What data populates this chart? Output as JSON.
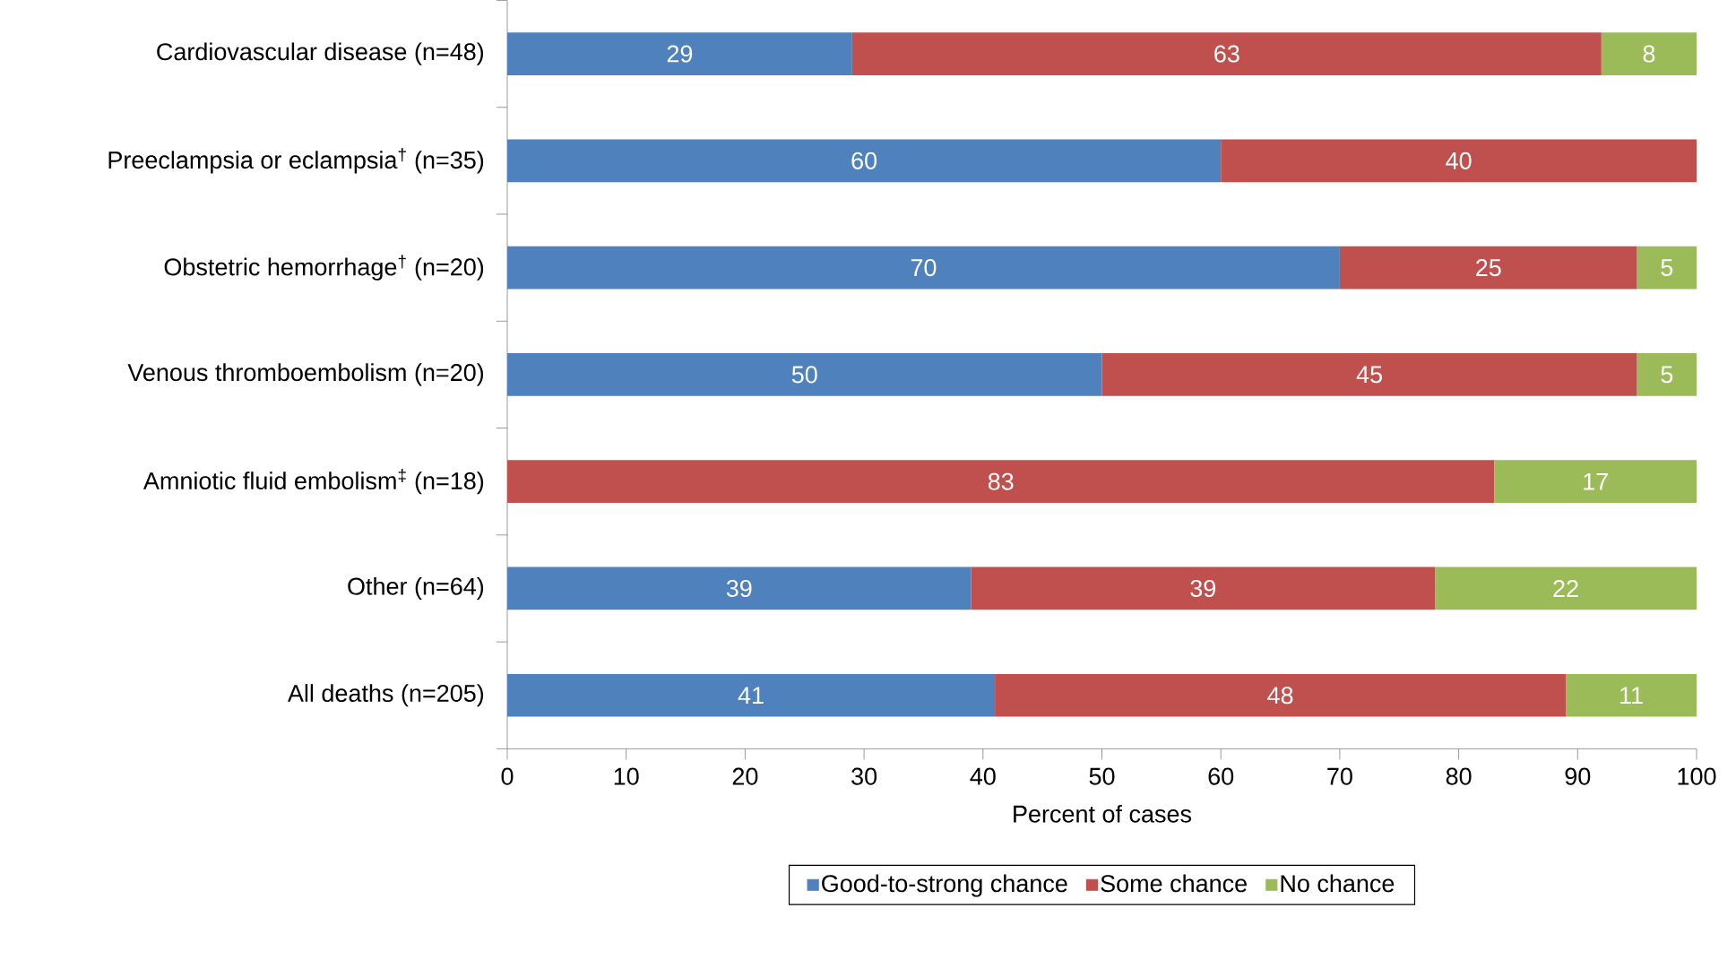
{
  "chart_data": {
    "type": "bar",
    "orientation": "horizontal",
    "stacked": true,
    "categories": [
      "Cardiovascular disease (n=48)",
      "Preeclampsia or eclampsia$^{†}$ (n=35)",
      "Obstetric hemorrhage$^{†}$ (n=20)",
      "Venous thromboembolism (n=20)",
      "Amniotic fluid embolism$^{‡}$ (n=18)",
      "Other (n=64)",
      "All deaths (n=205)"
    ],
    "series": [
      {
        "name": "Good-to-strong chance",
        "color": "#4f81bd",
        "values": [
          29,
          60,
          70,
          50,
          null,
          39,
          41
        ]
      },
      {
        "name": "Some chance",
        "color": "#c0504d",
        "values": [
          63,
          40,
          25,
          45,
          83,
          39,
          48
        ]
      },
      {
        "name": "No chance",
        "color": "#9bbb59",
        "values": [
          8,
          null,
          5,
          5,
          17,
          22,
          11
        ]
      }
    ],
    "xlabel": "Percent of cases",
    "xlim": [
      0,
      100
    ],
    "xticks": [
      0,
      10,
      20,
      30,
      40,
      50,
      60,
      70,
      80,
      90,
      100
    ],
    "data_labels": true,
    "legend": "bottom",
    "grid": false
  }
}
